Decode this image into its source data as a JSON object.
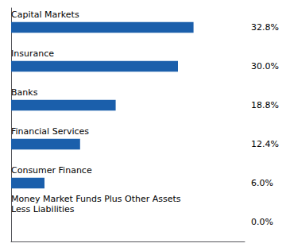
{
  "chart_data": {
    "type": "bar",
    "orientation": "horizontal",
    "categories": [
      "Money Market Funds Plus Other Assets\nLess Liabilities",
      "Consumer Finance",
      "Financial Services",
      "Banks",
      "Insurance",
      "Capital Markets"
    ],
    "values": [
      0.0,
      6.0,
      12.4,
      18.8,
      30.0,
      32.8
    ],
    "value_labels": [
      "0.0%",
      "6.0%",
      "12.4%",
      "18.8%",
      "30.0%",
      "32.8%"
    ],
    "data_labels": true,
    "color": "#1B5FAB",
    "xlim": [
      0,
      42
    ],
    "grid": false,
    "tick_labels": false
  }
}
